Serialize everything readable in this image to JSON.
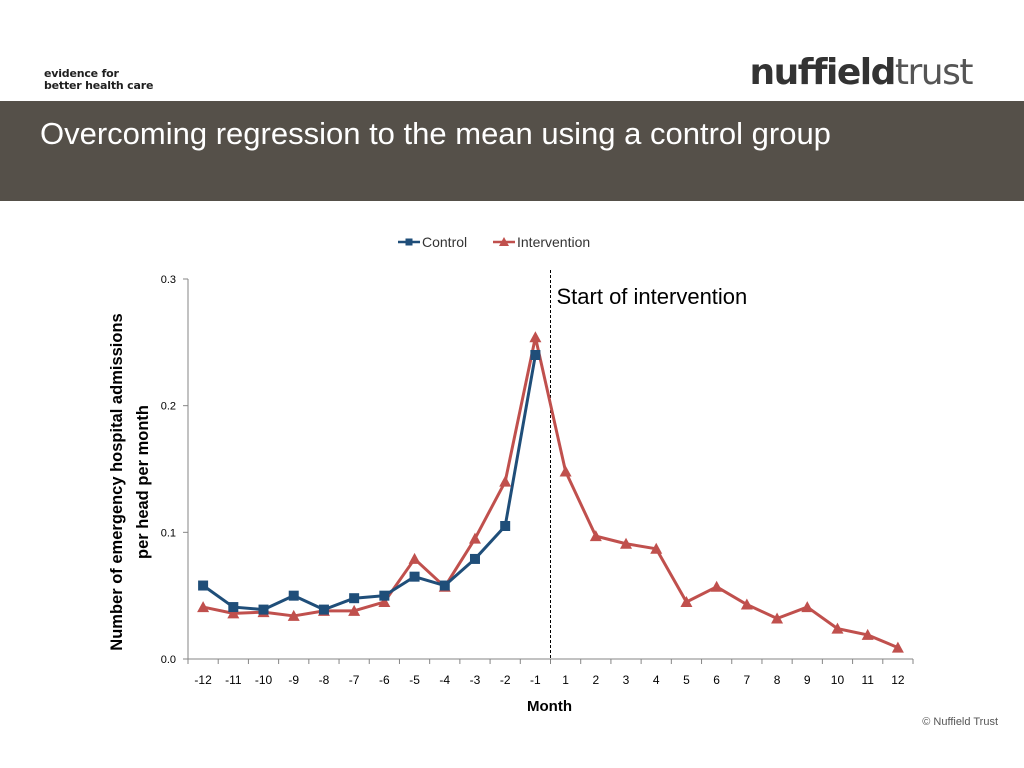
{
  "header": {
    "tagline_line1": "evidence for",
    "tagline_line2": "better health care",
    "brand_bold": "nuffield",
    "brand_light": "trust",
    "title": "Overcoming regression to the mean using a control group"
  },
  "footer": {
    "copyright": "© Nuffield Trust"
  },
  "colors": {
    "control": "#1F4E79",
    "intervention": "#C0504D",
    "title_bar": "#555049"
  },
  "chart_data": {
    "type": "line",
    "title": "",
    "xlabel": "Month",
    "ylabel_line1": "Number of emergency hospital admissions",
    "ylabel_line2": "per head per month",
    "categories": [
      "-12",
      "-11",
      "-10",
      "-9",
      "-8",
      "-7",
      "-6",
      "-5",
      "-4",
      "-3",
      "-2",
      "-1",
      "1",
      "2",
      "3",
      "4",
      "5",
      "6",
      "7",
      "8",
      "9",
      "10",
      "11",
      "12"
    ],
    "ylim": [
      0,
      0.3
    ],
    "yticks": [
      "0.0",
      "0.1",
      "0.2",
      "0.3"
    ],
    "grid": false,
    "legend_position": "top",
    "annotation": {
      "text": "Start of intervention",
      "at": "between -1 and 1"
    },
    "series": [
      {
        "name": "Control",
        "marker": "square",
        "values": [
          0.058,
          0.041,
          0.039,
          0.05,
          0.039,
          0.048,
          0.05,
          0.065,
          0.058,
          0.079,
          0.105,
          0.24,
          null,
          null,
          null,
          null,
          null,
          null,
          null,
          null,
          null,
          null,
          null,
          null
        ]
      },
      {
        "name": "Intervention",
        "marker": "triangle",
        "values": [
          0.041,
          0.036,
          0.037,
          0.034,
          0.038,
          0.038,
          0.045,
          0.079,
          0.057,
          0.095,
          0.14,
          0.254,
          0.148,
          0.097,
          0.091,
          0.087,
          0.045,
          0.057,
          0.043,
          0.032,
          0.041,
          0.024,
          0.019,
          0.009
        ]
      }
    ]
  }
}
